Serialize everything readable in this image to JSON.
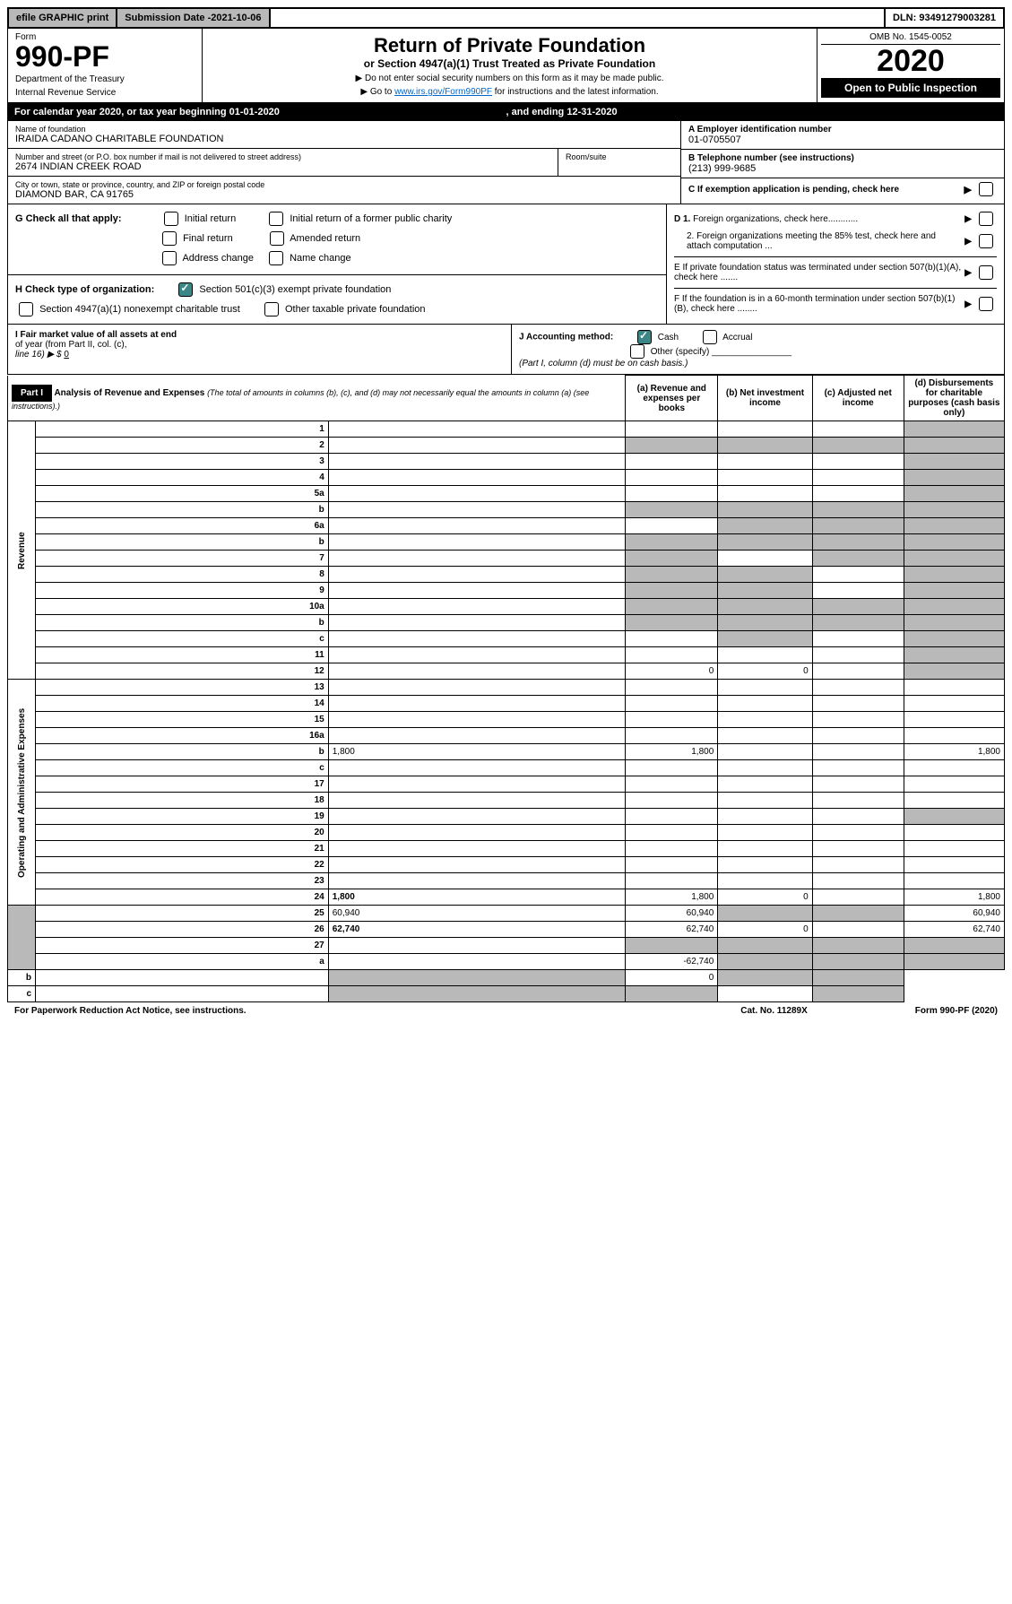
{
  "topbar": {
    "efile": "efile GRAPHIC print",
    "subdate_label": "Submission Date - ",
    "subdate_val": "2021-10-06",
    "dln": "DLN: 93491279003281"
  },
  "header": {
    "form_label": "Form",
    "form_no": "990-PF",
    "dept1": "Department of the Treasury",
    "dept2": "Internal Revenue Service",
    "title": "Return of Private Foundation",
    "subtitle": "or Section 4947(a)(1) Trust Treated as Private Foundation",
    "instr1": "▶ Do not enter social security numbers on this form as it may be made public.",
    "instr2_pre": "▶ Go to ",
    "instr2_link": "www.irs.gov/Form990PF",
    "instr2_post": " for instructions and the latest information.",
    "omb": "OMB No. 1545-0052",
    "year": "2020",
    "open": "Open to Public Inspection"
  },
  "caly": {
    "left": "For calendar year 2020, or tax year beginning 01-01-2020",
    "right": ", and ending 12-31-2020"
  },
  "info": {
    "name_label": "Name of foundation",
    "name_val": "IRAIDA CADANO CHARITABLE FOUNDATION",
    "addr_label": "Number and street (or P.O. box number if mail is not delivered to street address)",
    "addr_val": "2674 INDIAN CREEK ROAD",
    "room_label": "Room/suite",
    "room_val": "",
    "city_label": "City or town, state or province, country, and ZIP or foreign postal code",
    "city_val": "DIAMOND BAR, CA  91765",
    "a_label": "A Employer identification number",
    "a_val": "01-0705507",
    "b_label": "B Telephone number (see instructions)",
    "b_val": "(213) 999-9685",
    "c_label": "C If exemption application is pending, check here"
  },
  "checks": {
    "g_label": "G Check all that apply:",
    "g_opts": [
      "Initial return",
      "Initial return of a former public charity",
      "Final return",
      "Amended return",
      "Address change",
      "Name change"
    ],
    "h_label": "H Check type of organization:",
    "h_opts": [
      "Section 501(c)(3) exempt private foundation",
      "Section 4947(a)(1) nonexempt charitable trust",
      "Other taxable private foundation"
    ],
    "h_checked": 0,
    "i_label1": "I Fair market value of all assets at end",
    "i_label2": "of year (from Part II, col. (c),",
    "i_label3": "line 16) ▶ $",
    "i_val": "0",
    "j_label": "J Accounting method:",
    "j_cash": "Cash",
    "j_accrual": "Accrual",
    "j_other": "Other (specify)",
    "j_note": "(Part I, column (d) must be on cash basis.)",
    "d1": "D 1. Foreign organizations, check here............",
    "d2": "2. Foreign organizations meeting the 85% test, check here and attach computation ...",
    "e": "E  If private foundation status was terminated under section 507(b)(1)(A), check here .......",
    "f": "F  If the foundation is in a 60-month termination under section 507(b)(1)(B), check here ........"
  },
  "part1": {
    "part_label": "Part I",
    "title": "Analysis of Revenue and Expenses",
    "title_note": "(The total of amounts in columns (b), (c), and (d) may not necessarily equal the amounts in column (a) (see instructions).)",
    "col_a": "(a) Revenue and expenses per books",
    "col_b": "(b) Net investment income",
    "col_c": "(c) Adjusted net income",
    "col_d": "(d) Disbursements for charitable purposes (cash basis only)",
    "side_rev": "Revenue",
    "side_exp": "Operating and Administrative Expenses",
    "rows": [
      {
        "n": "1",
        "d": "",
        "a": "",
        "b": "",
        "c": "",
        "shade_d": true
      },
      {
        "n": "2",
        "d": "",
        "a": "",
        "b": "",
        "c": "",
        "shade_abcd": true,
        "bold": false
      },
      {
        "n": "3",
        "d": "",
        "a": "",
        "b": "",
        "c": "",
        "shade_d": true
      },
      {
        "n": "4",
        "d": "",
        "a": "",
        "b": "",
        "c": "",
        "shade_d": true
      },
      {
        "n": "5a",
        "d": "",
        "a": "",
        "b": "",
        "c": "",
        "shade_d": true
      },
      {
        "n": "b",
        "d": "",
        "a": "",
        "b": "",
        "c": "",
        "shade_abcd": true
      },
      {
        "n": "6a",
        "d": "",
        "a": "",
        "b": "",
        "c": "",
        "shade_bcd": true
      },
      {
        "n": "b",
        "d": "",
        "a": "",
        "b": "",
        "c": "",
        "shade_abcd": true
      },
      {
        "n": "7",
        "d": "",
        "a": "",
        "b": "",
        "c": "",
        "shade_acd": true,
        "only_b": true
      },
      {
        "n": "8",
        "d": "",
        "a": "",
        "b": "",
        "c": "",
        "shade_abd": true
      },
      {
        "n": "9",
        "d": "",
        "a": "",
        "b": "",
        "c": "",
        "shade_abd": true
      },
      {
        "n": "10a",
        "d": "",
        "a": "",
        "b": "",
        "c": "",
        "shade_abcd": true
      },
      {
        "n": "b",
        "d": "",
        "a": "",
        "b": "",
        "c": "",
        "shade_abcd": true
      },
      {
        "n": "c",
        "d": "",
        "a": "",
        "b": "",
        "c": "",
        "shade_bd": true
      },
      {
        "n": "11",
        "d": "",
        "a": "",
        "b": "",
        "c": "",
        "shade_d": true
      },
      {
        "n": "12",
        "d": "",
        "a": "0",
        "b": "0",
        "c": "",
        "shade_d": true,
        "bold": true
      },
      {
        "n": "13",
        "d": "",
        "a": "",
        "b": "",
        "c": ""
      },
      {
        "n": "14",
        "d": "",
        "a": "",
        "b": "",
        "c": ""
      },
      {
        "n": "15",
        "d": "",
        "a": "",
        "b": "",
        "c": ""
      },
      {
        "n": "16a",
        "d": "",
        "a": "",
        "b": "",
        "c": ""
      },
      {
        "n": "b",
        "d": "1,800",
        "a": "1,800",
        "b": "",
        "c": ""
      },
      {
        "n": "c",
        "d": "",
        "a": "",
        "b": "",
        "c": ""
      },
      {
        "n": "17",
        "d": "",
        "a": "",
        "b": "",
        "c": ""
      },
      {
        "n": "18",
        "d": "",
        "a": "",
        "b": "",
        "c": ""
      },
      {
        "n": "19",
        "d": "",
        "a": "",
        "b": "",
        "c": "",
        "shade_d": true
      },
      {
        "n": "20",
        "d": "",
        "a": "",
        "b": "",
        "c": ""
      },
      {
        "n": "21",
        "d": "",
        "a": "",
        "b": "",
        "c": ""
      },
      {
        "n": "22",
        "d": "",
        "a": "",
        "b": "",
        "c": ""
      },
      {
        "n": "23",
        "d": "",
        "a": "",
        "b": "",
        "c": ""
      },
      {
        "n": "24",
        "d": "1,800",
        "a": "1,800",
        "b": "0",
        "c": "",
        "bold": true
      },
      {
        "n": "25",
        "d": "60,940",
        "a": "60,940",
        "b": "",
        "c": "",
        "shade_bc": true
      },
      {
        "n": "26",
        "d": "62,740",
        "a": "62,740",
        "b": "0",
        "c": "",
        "bold": true
      },
      {
        "n": "27",
        "d": "",
        "a": "",
        "b": "",
        "c": "",
        "shade_abcd": true
      },
      {
        "n": "a",
        "d": "",
        "a": "-62,740",
        "b": "",
        "c": "",
        "shade_bcd": true,
        "bold": true
      },
      {
        "n": "b",
        "d": "",
        "a": "",
        "b": "0",
        "c": "",
        "shade_acd": true,
        "bold": true
      },
      {
        "n": "c",
        "d": "",
        "a": "",
        "b": "",
        "c": "",
        "shade_abd": true,
        "bold": true
      }
    ]
  },
  "footer": {
    "left": "For Paperwork Reduction Act Notice, see instructions.",
    "mid": "Cat. No. 11289X",
    "right": "Form 990-PF (2020)"
  }
}
